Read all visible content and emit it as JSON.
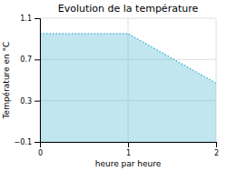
{
  "chart_data": {
    "type": "area",
    "title": "Evolution de la température",
    "x_label": "heure par heure",
    "y_label": "Température en °C",
    "x": [
      0,
      1,
      2
    ],
    "values": [
      0.95,
      0.95,
      0.47
    ],
    "xlim": [
      0,
      2
    ],
    "ylim": [
      -0.1,
      1.1
    ],
    "xticks": [
      0,
      1,
      2
    ],
    "yticks": [
      -0.1,
      0.3,
      0.7,
      1.1
    ],
    "color": "#4db8d4",
    "line_style": "dotted",
    "grid": true
  }
}
